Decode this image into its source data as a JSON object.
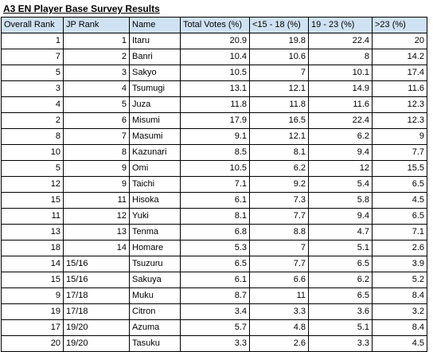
{
  "title": "A3 EN Player Base Survey Results",
  "headers": [
    "Overall Rank",
    "JP Rank",
    "Name",
    "Total Votes (%)",
    "<15 - 18 (%)",
    "19 - 23 (%)",
    ">23 (%)"
  ],
  "rows": [
    {
      "overall_rank": "1",
      "jp_rank": "1",
      "name": "Itaru",
      "total": "20.9",
      "u18": "19.8",
      "a19_23": "22.4",
      "o23": "20"
    },
    {
      "overall_rank": "7",
      "jp_rank": "2",
      "name": "Banri",
      "total": "10.4",
      "u18": "10.6",
      "a19_23": "8",
      "o23": "14.2"
    },
    {
      "overall_rank": "5",
      "jp_rank": "3",
      "name": "Sakyo",
      "total": "10.5",
      "u18": "7",
      "a19_23": "10.1",
      "o23": "17.4"
    },
    {
      "overall_rank": "3",
      "jp_rank": "4",
      "name": "Tsumugi",
      "total": "13.1",
      "u18": "12.1",
      "a19_23": "14.9",
      "o23": "11.6"
    },
    {
      "overall_rank": "4",
      "jp_rank": "5",
      "name": "Juza",
      "total": "11.8",
      "u18": "11.8",
      "a19_23": "11.6",
      "o23": "12.3"
    },
    {
      "overall_rank": "2",
      "jp_rank": "6",
      "name": "Misumi",
      "total": "17.9",
      "u18": "16.5",
      "a19_23": "22.4",
      "o23": "12.3"
    },
    {
      "overall_rank": "8",
      "jp_rank": "7",
      "name": "Masumi",
      "total": "9.1",
      "u18": "12.1",
      "a19_23": "6.2",
      "o23": "9"
    },
    {
      "overall_rank": "10",
      "jp_rank": "8",
      "name": "Kazunari",
      "total": "8.5",
      "u18": "8.1",
      "a19_23": "9.4",
      "o23": "7.7"
    },
    {
      "overall_rank": "5",
      "jp_rank": "9",
      "name": "Omi",
      "total": "10.5",
      "u18": "6.2",
      "a19_23": "12",
      "o23": "15.5"
    },
    {
      "overall_rank": "12",
      "jp_rank": "9",
      "name": "Taichi",
      "total": "7.1",
      "u18": "9.2",
      "a19_23": "5.4",
      "o23": "6.5"
    },
    {
      "overall_rank": "15",
      "jp_rank": "11",
      "name": "Hisoka",
      "total": "6.1",
      "u18": "7.3",
      "a19_23": "5.8",
      "o23": "4.5"
    },
    {
      "overall_rank": "11",
      "jp_rank": "12",
      "name": "Yuki",
      "total": "8.1",
      "u18": "7.7",
      "a19_23": "9.4",
      "o23": "6.5"
    },
    {
      "overall_rank": "13",
      "jp_rank": "13",
      "name": "Tenma",
      "total": "6.8",
      "u18": "8.8",
      "a19_23": "4.7",
      "o23": "7.1"
    },
    {
      "overall_rank": "18",
      "jp_rank": "14",
      "name": "Homare",
      "total": "5.3",
      "u18": "7",
      "a19_23": "5.1",
      "o23": "2.6"
    },
    {
      "overall_rank": "14",
      "jp_rank": "15/16",
      "name": "Tsuzuru",
      "total": "6.5",
      "u18": "7.7",
      "a19_23": "6.5",
      "o23": "3.9"
    },
    {
      "overall_rank": "15",
      "jp_rank": "15/16",
      "name": "Sakuya",
      "total": "6.1",
      "u18": "6.6",
      "a19_23": "6.2",
      "o23": "5.2"
    },
    {
      "overall_rank": "9",
      "jp_rank": "17/18",
      "name": "Muku",
      "total": "8.7",
      "u18": "11",
      "a19_23": "6.5",
      "o23": "8.4"
    },
    {
      "overall_rank": "19",
      "jp_rank": "17/18",
      "name": "Citron",
      "total": "3.4",
      "u18": "3.3",
      "a19_23": "3.6",
      "o23": "3.2"
    },
    {
      "overall_rank": "17",
      "jp_rank": "19/20",
      "name": "Azuma",
      "total": "5.7",
      "u18": "4.8",
      "a19_23": "5.1",
      "o23": "8.4"
    },
    {
      "overall_rank": "20",
      "jp_rank": "19/20",
      "name": "Tasuku",
      "total": "3.3",
      "u18": "2.6",
      "a19_23": "3.3",
      "o23": "4.5"
    }
  ],
  "colors": {
    "header_fill": "#cfe2f3",
    "border": "#000000",
    "text": "#000000"
  }
}
